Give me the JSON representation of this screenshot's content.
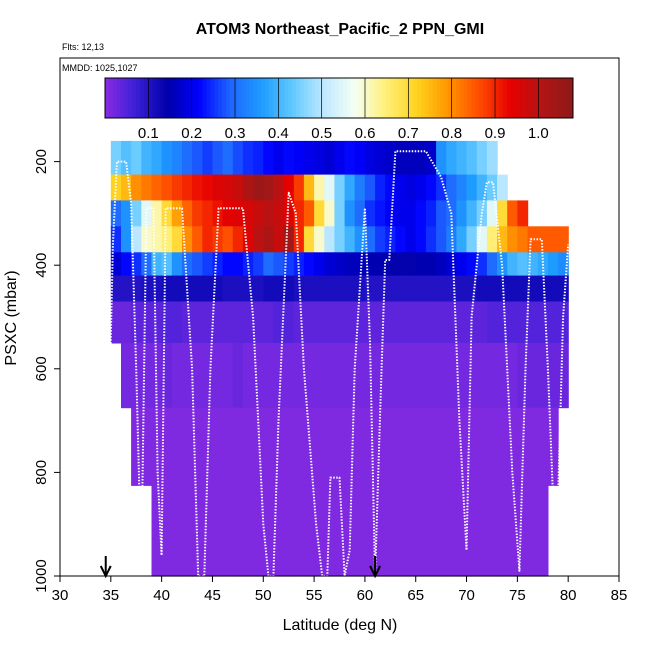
{
  "chart_data": {
    "type": "heatmap",
    "title": "ATOM3 Northeast_Pacific_2 PPN_GMI",
    "flights_label": "Flts: 12,13",
    "mmdd_label": "MMDD: 1025,1027",
    "xlabel": "Latitude (deg N)",
    "ylabel": "PSXC (mbar)",
    "xlim": [
      30,
      85
    ],
    "ylim": [
      1000,
      0
    ],
    "x_ticks": [
      "30",
      "35",
      "40",
      "45",
      "50",
      "55",
      "60",
      "65",
      "70",
      "75",
      "80",
      "85"
    ],
    "y_ticks": [
      "200",
      "400",
      "600",
      "800",
      "1000"
    ],
    "colorbar": {
      "range": [
        0,
        1.08
      ],
      "ticks": [
        "0.1",
        "0.2",
        "0.3",
        "0.4",
        "0.5",
        "0.6",
        "0.7",
        "0.8",
        "0.9",
        "1.0"
      ],
      "tick_values": [
        0.1,
        0.2,
        0.3,
        0.4,
        0.5,
        0.6,
        0.7,
        0.8,
        0.9,
        1.0
      ],
      "colors": [
        "#8a2be2",
        "#3a1fd6",
        "#0000aa",
        "#0000ff",
        "#1e64ff",
        "#1e9bff",
        "#5fc8ff",
        "#bfe8ff",
        "#f4fff4",
        "#fff07a",
        "#ffd21e",
        "#ff9600",
        "#ff4b00",
        "#e60000",
        "#b41414",
        "#8b1a1a"
      ]
    },
    "latitudes": [
      35.5,
      36.5,
      37.5,
      38.5,
      39.5,
      40.5,
      41.5,
      42.5,
      43.5,
      44.5,
      45.5,
      46.5,
      47.5,
      48.5,
      49.5,
      50.5,
      51.5,
      52.5,
      53.5,
      54.5,
      55.5,
      56.5,
      57.5,
      58.5,
      59.5,
      60.5,
      61.5,
      62.5,
      63.5,
      64.5,
      65.5,
      66.5,
      67.5,
      68.5,
      69.5,
      70.5,
      71.5,
      72.5,
      73.5,
      74.5,
      75.5,
      76.5,
      77.5,
      78.5,
      79.5
    ],
    "levels": [
      {
        "pressure": 200,
        "values": [
          0.45,
          0.42,
          0.44,
          0.4,
          0.38,
          0.35,
          0.33,
          0.3,
          0.28,
          0.26,
          0.28,
          0.3,
          0.27,
          0.25,
          0.24,
          0.22,
          0.2,
          0.22,
          0.21,
          0.2,
          0.19,
          0.18,
          0.2,
          0.22,
          0.21,
          0.19,
          0.18,
          0.17,
          0.16,
          0.16,
          0.16,
          0.17,
          0.35,
          0.38,
          0.4,
          0.42,
          0.45,
          0.48,
          null,
          null,
          null,
          null,
          null,
          null,
          null
        ]
      },
      {
        "pressure": 250,
        "values": [
          0.72,
          0.75,
          0.8,
          0.82,
          0.84,
          0.86,
          0.88,
          0.9,
          0.92,
          0.93,
          0.95,
          0.96,
          0.98,
          1.02,
          1.05,
          1.04,
          1.0,
          0.94,
          0.88,
          0.75,
          0.62,
          0.55,
          0.45,
          0.38,
          0.32,
          0.28,
          0.24,
          0.22,
          0.2,
          0.19,
          0.2,
          0.22,
          0.25,
          0.3,
          0.33,
          0.36,
          0.4,
          0.44,
          0.5,
          null,
          null,
          null,
          null,
          null,
          null
        ]
      },
      {
        "pressure": 300,
        "values": [
          0.3,
          0.35,
          0.45,
          0.55,
          0.62,
          0.7,
          0.78,
          0.84,
          0.88,
          0.9,
          0.92,
          0.94,
          0.95,
          0.96,
          0.98,
          1.0,
          0.98,
          0.95,
          0.9,
          0.85,
          0.7,
          0.6,
          0.45,
          0.35,
          0.3,
          0.25,
          0.23,
          0.21,
          0.2,
          0.2,
          0.22,
          0.24,
          0.28,
          0.3,
          0.35,
          0.4,
          0.45,
          0.55,
          0.7,
          0.85,
          0.9,
          null,
          null,
          null,
          null
        ]
      },
      {
        "pressure": 350,
        "values": [
          0.25,
          0.35,
          0.5,
          0.6,
          0.62,
          0.65,
          0.7,
          0.8,
          0.85,
          0.9,
          0.88,
          0.86,
          0.9,
          0.95,
          1.0,
          1.02,
          0.98,
          1.04,
          0.9,
          0.7,
          0.6,
          0.5,
          0.45,
          0.4,
          0.35,
          0.3,
          0.26,
          0.24,
          0.22,
          0.2,
          0.22,
          0.25,
          0.28,
          0.32,
          0.38,
          0.45,
          0.55,
          0.65,
          0.75,
          0.8,
          0.82,
          0.85,
          0.85,
          0.85,
          0.85
        ]
      },
      {
        "pressure": 400,
        "values": [
          0.18,
          0.22,
          0.25,
          0.3,
          0.4,
          0.42,
          0.35,
          0.3,
          0.28,
          0.26,
          0.24,
          0.22,
          0.22,
          0.24,
          0.26,
          0.3,
          0.28,
          0.26,
          0.24,
          0.22,
          0.2,
          0.18,
          0.17,
          0.16,
          0.16,
          0.15,
          0.15,
          0.14,
          0.14,
          0.14,
          0.15,
          0.15,
          0.16,
          0.18,
          0.2,
          0.22,
          0.25,
          0.3,
          0.35,
          0.4,
          0.42,
          0.4,
          0.38,
          0.36,
          0.34
        ]
      },
      {
        "pressure": 440,
        "values": [
          0.1,
          0.1,
          0.1,
          0.11,
          0.11,
          0.12,
          0.12,
          0.12,
          0.12,
          0.12,
          0.12,
          0.11,
          0.11,
          0.11,
          0.11,
          0.12,
          0.12,
          0.12,
          0.11,
          0.11,
          0.11,
          0.11,
          0.11,
          0.11,
          0.11,
          0.1,
          0.1,
          0.1,
          0.1,
          0.1,
          0.1,
          0.1,
          0.1,
          0.1,
          0.11,
          0.11,
          0.12,
          0.12,
          0.12,
          0.12,
          0.12,
          0.12,
          0.12,
          0.12,
          0.12
        ]
      },
      {
        "pressure": 500,
        "values": [
          0.03,
          0.03,
          0.04,
          0.04,
          0.04,
          0.05,
          0.05,
          0.04,
          0.04,
          0.04,
          0.04,
          0.04,
          0.04,
          0.04,
          0.04,
          0.04,
          0.05,
          0.05,
          0.04,
          0.04,
          0.04,
          0.04,
          0.04,
          0.04,
          0.04,
          0.04,
          0.04,
          0.04,
          0.04,
          0.04,
          0.04,
          0.04,
          0.04,
          0.04,
          0.04,
          0.04,
          0.04,
          0.05,
          0.05,
          0.05,
          0.05,
          0.05,
          0.05,
          0.05,
          0.05
        ]
      },
      {
        "pressure": 600,
        "values": [
          null,
          0.02,
          0.02,
          0.02,
          0.02,
          0.03,
          0.02,
          0.02,
          0.02,
          0.02,
          0.02,
          0.02,
          0.03,
          0.02,
          0.02,
          0.02,
          0.02,
          0.02,
          0.02,
          0.02,
          0.02,
          0.02,
          0.02,
          0.02,
          0.02,
          0.02,
          0.02,
          0.02,
          0.02,
          0.02,
          0.02,
          0.02,
          0.02,
          0.02,
          0.02,
          0.02,
          0.02,
          0.02,
          0.02,
          0.02,
          0.03,
          0.03,
          0.03,
          0.03,
          0.03
        ]
      },
      {
        "pressure": 750,
        "values": [
          null,
          null,
          0.01,
          0.01,
          0.01,
          0.01,
          0.01,
          0.01,
          0.01,
          0.01,
          0.01,
          0.01,
          0.01,
          0.01,
          0.01,
          0.01,
          0.01,
          0.01,
          0.01,
          0.01,
          0.01,
          0.01,
          0.01,
          0.01,
          0.01,
          0.01,
          0.01,
          0.01,
          0.01,
          0.01,
          0.01,
          0.01,
          0.01,
          0.01,
          0.01,
          0.01,
          0.01,
          0.01,
          0.01,
          0.01,
          0.01,
          0.01,
          0.01,
          0.01,
          null
        ]
      },
      {
        "pressure": 900,
        "values": [
          null,
          null,
          null,
          null,
          0.01,
          0.01,
          0.01,
          0.01,
          0.01,
          0.01,
          0.01,
          0.01,
          0.01,
          0.01,
          0.01,
          0.01,
          0.01,
          0.01,
          0.01,
          0.01,
          0.01,
          0.01,
          0.01,
          0.01,
          0.01,
          0.01,
          0.01,
          0.01,
          0.01,
          0.01,
          0.01,
          0.01,
          0.01,
          0.01,
          0.01,
          0.01,
          0.01,
          0.01,
          0.01,
          0.01,
          0.01,
          0.01,
          0.01,
          null,
          null
        ]
      }
    ],
    "flight_path": [
      [
        34.5,
        980
      ],
      [
        35.2,
        360
      ],
      [
        35.6,
        200
      ],
      [
        36.5,
        200
      ],
      [
        37.0,
        280
      ],
      [
        37.5,
        600
      ],
      [
        38.0,
        980
      ],
      [
        38.5,
        290
      ],
      [
        39.2,
        290
      ],
      [
        39.6,
        800
      ],
      [
        40.0,
        960
      ],
      [
        40.4,
        290
      ],
      [
        42.0,
        290
      ],
      [
        43.0,
        600
      ],
      [
        43.6,
        1000
      ],
      [
        44.2,
        1000
      ],
      [
        44.8,
        600
      ],
      [
        45.6,
        290
      ],
      [
        48.0,
        290
      ],
      [
        49.0,
        500
      ],
      [
        50.0,
        900
      ],
      [
        50.5,
        1000
      ],
      [
        51.0,
        1000
      ],
      [
        51.5,
        700
      ],
      [
        52.5,
        260
      ],
      [
        53.2,
        300
      ],
      [
        54.0,
        600
      ],
      [
        55.2,
        900
      ],
      [
        55.8,
        1000
      ],
      [
        56.3,
        1000
      ],
      [
        56.6,
        810
      ],
      [
        57.5,
        810
      ],
      [
        58.0,
        1000
      ],
      [
        58.5,
        950
      ],
      [
        59.0,
        600
      ],
      [
        60.0,
        290
      ],
      [
        60.5,
        550
      ],
      [
        61.0,
        1000
      ],
      [
        61.5,
        680
      ],
      [
        62.0,
        390
      ],
      [
        62.4,
        390
      ],
      [
        63.0,
        180
      ],
      [
        66.0,
        180
      ],
      [
        67.5,
        230
      ],
      [
        68.5,
        300
      ],
      [
        69.3,
        700
      ],
      [
        70.0,
        950
      ],
      [
        70.5,
        500
      ],
      [
        71.5,
        300
      ],
      [
        72.0,
        240
      ],
      [
        72.6,
        240
      ],
      [
        73.5,
        400
      ],
      [
        74.5,
        800
      ],
      [
        75.2,
        990
      ],
      [
        75.8,
        600
      ],
      [
        76.3,
        350
      ],
      [
        77.4,
        350
      ],
      [
        78.0,
        600
      ],
      [
        78.8,
        990
      ],
      [
        79.5,
        500
      ],
      [
        80.0,
        360
      ]
    ],
    "arrows": [
      34.5,
      61.0
    ]
  }
}
